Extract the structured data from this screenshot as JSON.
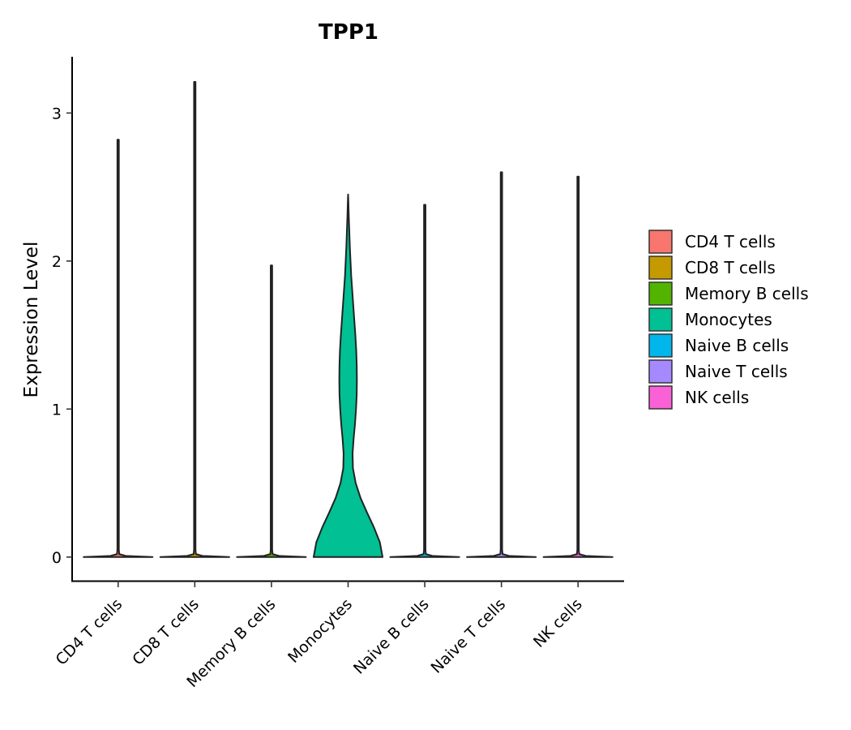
{
  "chart_data": {
    "type": "violin",
    "title": "TPP1",
    "xlabel": "",
    "ylabel": "Expression Level",
    "ylim": [
      -0.16,
      3.38
    ],
    "yticks": [
      0,
      1,
      2,
      3
    ],
    "ytick_labels": [
      "0",
      "1",
      "2",
      "3"
    ],
    "grid": false,
    "legend": {
      "placement": "right",
      "entries": [
        "CD4 T cells",
        "CD8 T cells",
        "Memory B cells",
        "Monocytes",
        "Naive B cells",
        "Naive T cells",
        "NK cells"
      ]
    },
    "categories": [
      "CD4 T cells",
      "CD8 T cells",
      "Memory B cells",
      "Monocytes",
      "Naive B cells",
      "Naive T cells",
      "NK cells"
    ],
    "colors": [
      "#F8766D",
      "#C49A00",
      "#53B400",
      "#00C094",
      "#00B6EB",
      "#A58AFF",
      "#FB61D7"
    ],
    "series": [
      {
        "name": "CD4 T cells",
        "min": 0,
        "max": 2.82
      },
      {
        "name": "CD8 T cells",
        "min": 0,
        "max": 3.21
      },
      {
        "name": "Memory B cells",
        "min": 0,
        "max": 1.97
      },
      {
        "name": "Monocytes",
        "min": 0,
        "max": 2.45,
        "density_profile": [
          [
            0.0,
            1.0
          ],
          [
            0.1,
            0.92
          ],
          [
            0.2,
            0.75
          ],
          [
            0.3,
            0.55
          ],
          [
            0.4,
            0.36
          ],
          [
            0.5,
            0.22
          ],
          [
            0.6,
            0.14
          ],
          [
            0.7,
            0.13
          ],
          [
            0.8,
            0.16
          ],
          [
            0.9,
            0.2
          ],
          [
            1.0,
            0.23
          ],
          [
            1.1,
            0.25
          ],
          [
            1.2,
            0.255
          ],
          [
            1.3,
            0.25
          ],
          [
            1.4,
            0.235
          ],
          [
            1.5,
            0.21
          ],
          [
            1.6,
            0.18
          ],
          [
            1.7,
            0.15
          ],
          [
            1.8,
            0.12
          ],
          [
            1.9,
            0.09
          ],
          [
            2.0,
            0.07
          ],
          [
            2.1,
            0.05
          ],
          [
            2.2,
            0.035
          ],
          [
            2.3,
            0.02
          ],
          [
            2.4,
            0.008
          ],
          [
            2.45,
            0.0
          ]
        ]
      },
      {
        "name": "Naive B cells",
        "min": 0,
        "max": 2.38
      },
      {
        "name": "Naive T cells",
        "min": 0,
        "max": 2.6
      },
      {
        "name": "NK cells",
        "min": 0,
        "max": 2.57
      }
    ]
  }
}
